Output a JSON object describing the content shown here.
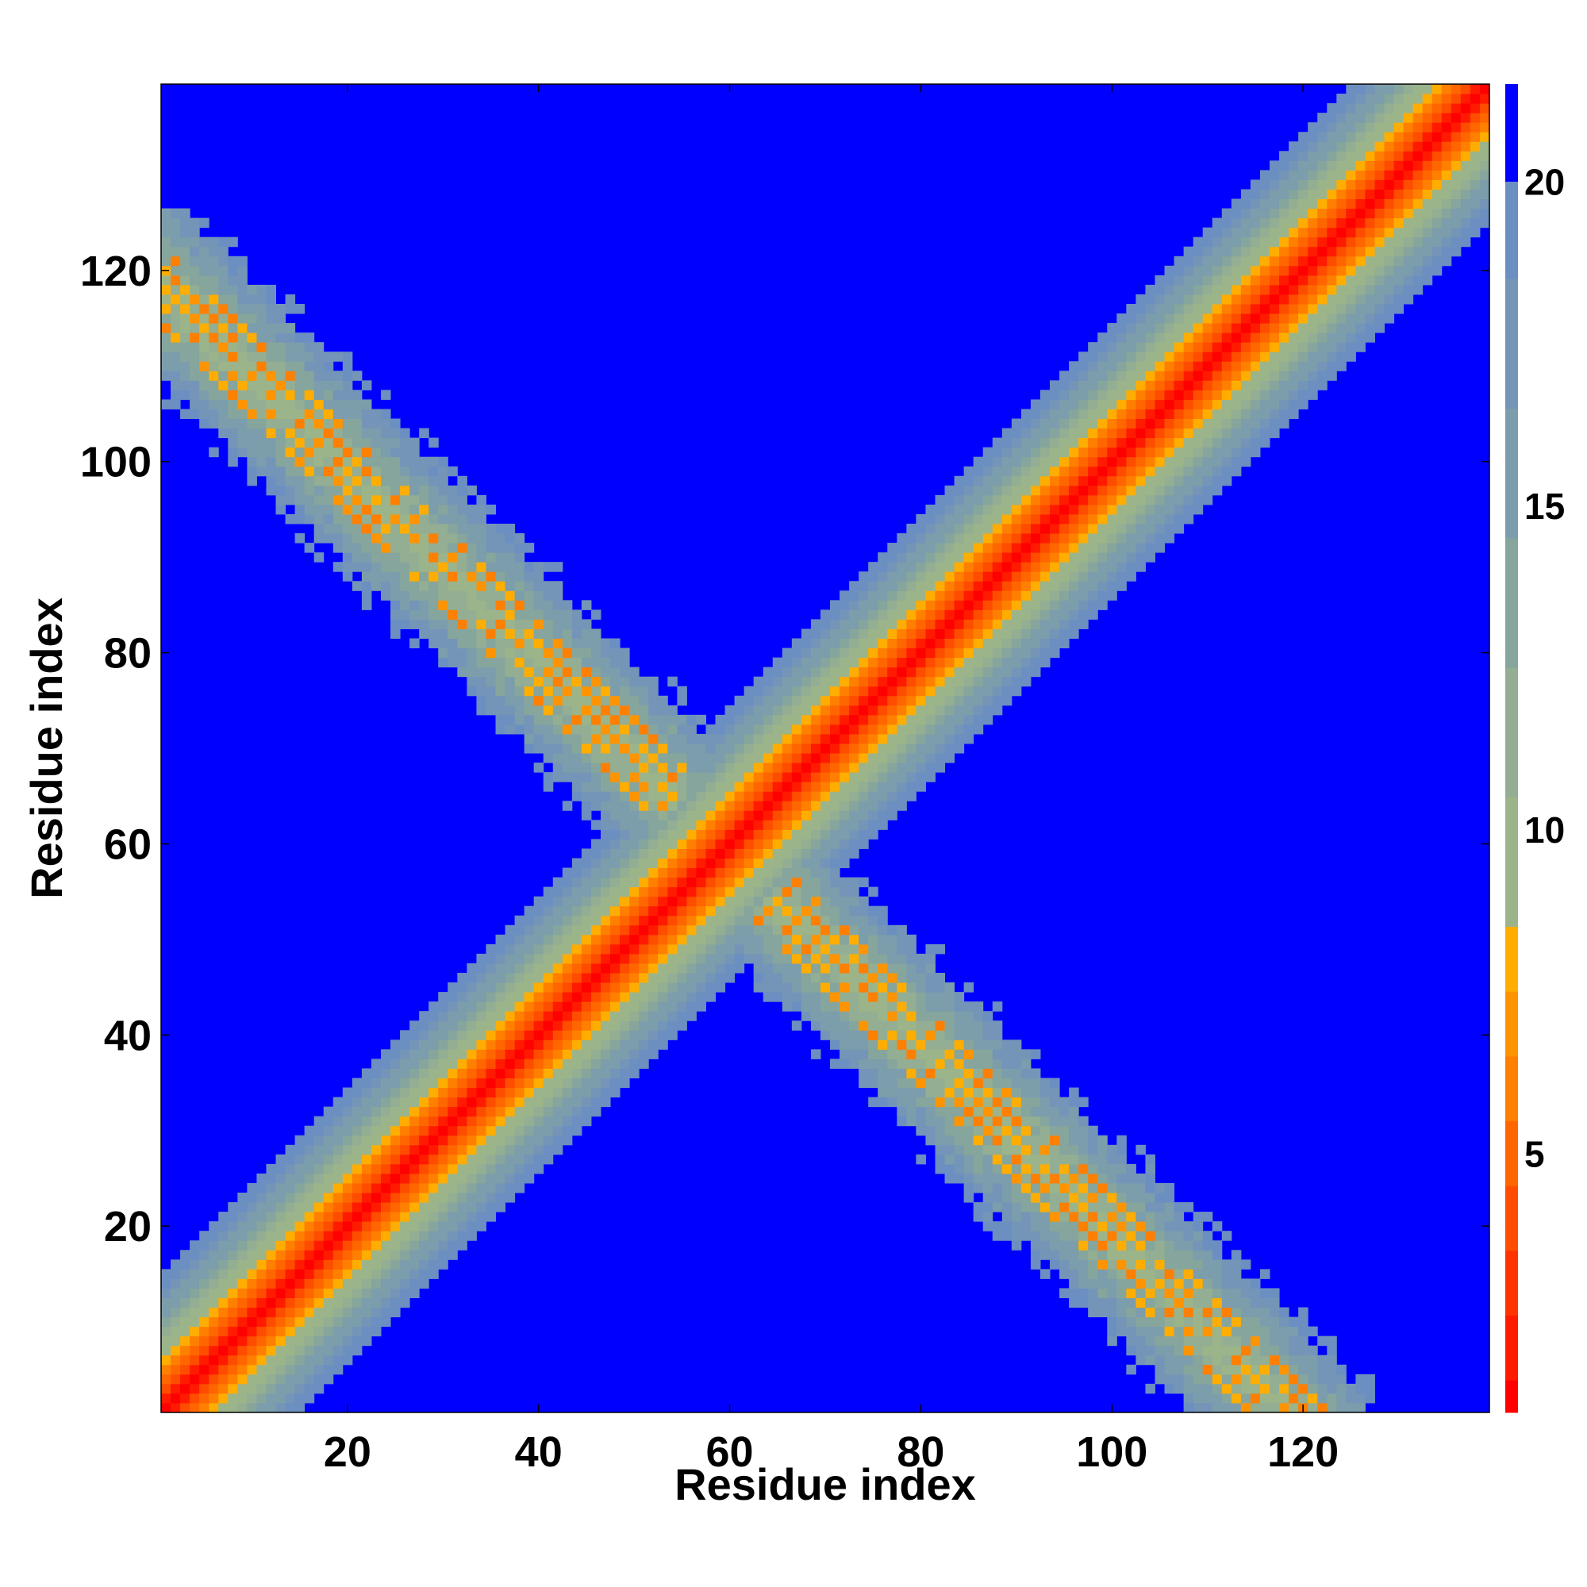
{
  "chart_data": {
    "type": "heatmap",
    "title": "",
    "xlabel": "Residue index",
    "ylabel": "Residue index",
    "n_residues": 139,
    "xlim": [
      1,
      139
    ],
    "ylim": [
      1,
      139
    ],
    "x_ticks": [
      20,
      40,
      60,
      80,
      100,
      120
    ],
    "y_ticks": [
      20,
      40,
      60,
      80,
      100,
      120
    ],
    "colorbar": {
      "range": [
        1,
        21.5
      ],
      "ticks": [
        5,
        10,
        15,
        20
      ],
      "levels": [
        {
          "from": 1.0,
          "to": 1.5,
          "color": "#ff0000"
        },
        {
          "from": 1.5,
          "to": 2.5,
          "color": "#ff1a00"
        },
        {
          "from": 2.5,
          "to": 3.5,
          "color": "#ff3300"
        },
        {
          "from": 3.5,
          "to": 4.5,
          "color": "#ff4d00"
        },
        {
          "from": 4.5,
          "to": 5.5,
          "color": "#ff6600"
        },
        {
          "from": 5.5,
          "to": 6.5,
          "color": "#ff7f00"
        },
        {
          "from": 6.5,
          "to": 7.5,
          "color": "#ff9400"
        },
        {
          "from": 7.5,
          "to": 8.5,
          "color": "#ffad00"
        },
        {
          "from": 8.5,
          "to": 10.5,
          "color": "#9cb48a"
        },
        {
          "from": 10.5,
          "to": 12.5,
          "color": "#93ae92"
        },
        {
          "from": 12.5,
          "to": 14.5,
          "color": "#86a59d"
        },
        {
          "from": 14.5,
          "to": 16.5,
          "color": "#7c9dab"
        },
        {
          "from": 16.5,
          "to": 18.5,
          "color": "#7495b7"
        },
        {
          "from": 18.5,
          "to": 20.0,
          "color": "#6b8fc0"
        },
        {
          "from": 20.0,
          "to": 21.5,
          "color": "#0000ff"
        }
      ]
    },
    "description_of_values": "Pairwise distance map: main diagonal band (|i-j| small) with values 1-20; anti-diagonal band (i+j ~ 119) with values 5-20; all other entries >20 (blue)."
  }
}
